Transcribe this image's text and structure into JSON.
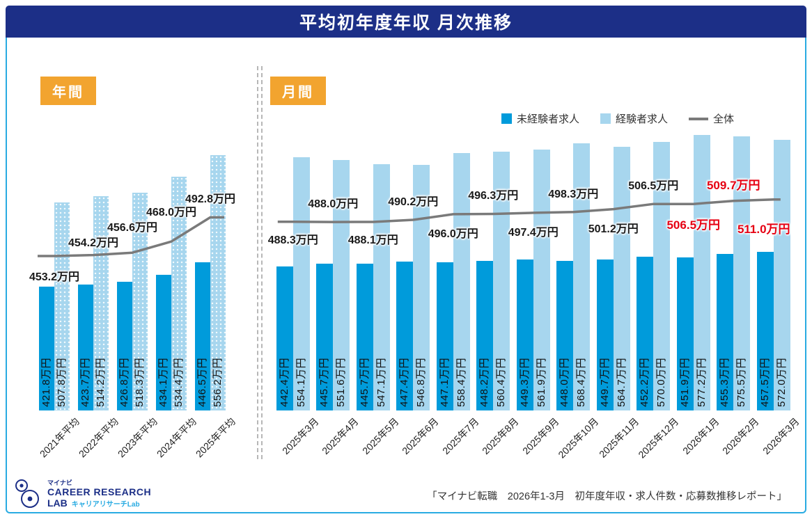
{
  "header": {
    "title": "平均初年度年収 月次推移"
  },
  "sections": {
    "yearly": "年間",
    "monthly": "月間"
  },
  "legend": {
    "items": [
      {
        "label": "未経験者求人",
        "swatch": "square-dark-blue"
      },
      {
        "label": "経験者求人",
        "swatch": "square-light-blue"
      },
      {
        "label": "全体",
        "swatch": "gray-line"
      }
    ]
  },
  "colors": {
    "header_bg": "#1c2f87",
    "badge_bg": "#f2a42f",
    "bar_inexperienced": "#009bdb",
    "bar_experienced": "#a7d6ee",
    "line": "#7a7a7a",
    "highlight": "#e60012",
    "frame_border": "#29abe2"
  },
  "chart_data": [
    {
      "type": "bar",
      "name": "yearly",
      "title": "年間",
      "unit": "万円",
      "ylim": [
        295,
        580
      ],
      "grid": false,
      "categories": [
        "2021年平均",
        "2022年平均",
        "2023年平均",
        "2024年平均",
        "2025年平均"
      ],
      "series": [
        {
          "name": "未経験者求人",
          "type": "bar",
          "values": [
            421.8,
            423.7,
            426.8,
            434.1,
            446.5
          ]
        },
        {
          "name": "経験者求人",
          "type": "bar",
          "pattern": "dots",
          "values": [
            507.8,
            514.2,
            518.3,
            534.4,
            556.2
          ]
        },
        {
          "name": "全体",
          "type": "line",
          "values": [
            453.2,
            454.2,
            456.6,
            468.0,
            492.8
          ]
        }
      ]
    },
    {
      "type": "bar",
      "name": "monthly",
      "title": "月間",
      "unit": "万円",
      "ylim": [
        295,
        580
      ],
      "grid": false,
      "categories": [
        "2025年3月",
        "2025年4月",
        "2025年5月",
        "2025年6月",
        "2025年7月",
        "2025年8月",
        "2025年9月",
        "2025年10月",
        "2025年11月",
        "2025年12月",
        "2026年1月",
        "2026年2月",
        "2026年3月"
      ],
      "series": [
        {
          "name": "未経験者求人",
          "type": "bar",
          "values": [
            442.4,
            445.7,
            445.7,
            447.4,
            447.1,
            448.2,
            449.3,
            448.0,
            449.7,
            452.2,
            451.9,
            455.3,
            457.5
          ]
        },
        {
          "name": "経験者求人",
          "type": "bar",
          "values": [
            554.1,
            551.6,
            547.1,
            546.8,
            558.4,
            560.4,
            561.9,
            568.4,
            564.7,
            570.0,
            577.2,
            575.5,
            572.0
          ]
        },
        {
          "name": "全体",
          "type": "line",
          "values": [
            488.3,
            488.0,
            488.1,
            490.2,
            496.0,
            496.3,
            497.4,
            498.3,
            501.2,
            506.5,
            506.5,
            509.7,
            511.0
          ],
          "highlight_indices": [
            10,
            11,
            12
          ]
        }
      ]
    }
  ],
  "footer": {
    "logo": {
      "brand_small": "マイナビ",
      "brand_line1": "CAREER RESEARCH",
      "brand_line2": "LAB",
      "brand_sub": "キャリアリサーチLab"
    },
    "source": "「マイナビ転職　2026年1-3月　初年度年収・求人件数・応募数推移レポート」"
  }
}
